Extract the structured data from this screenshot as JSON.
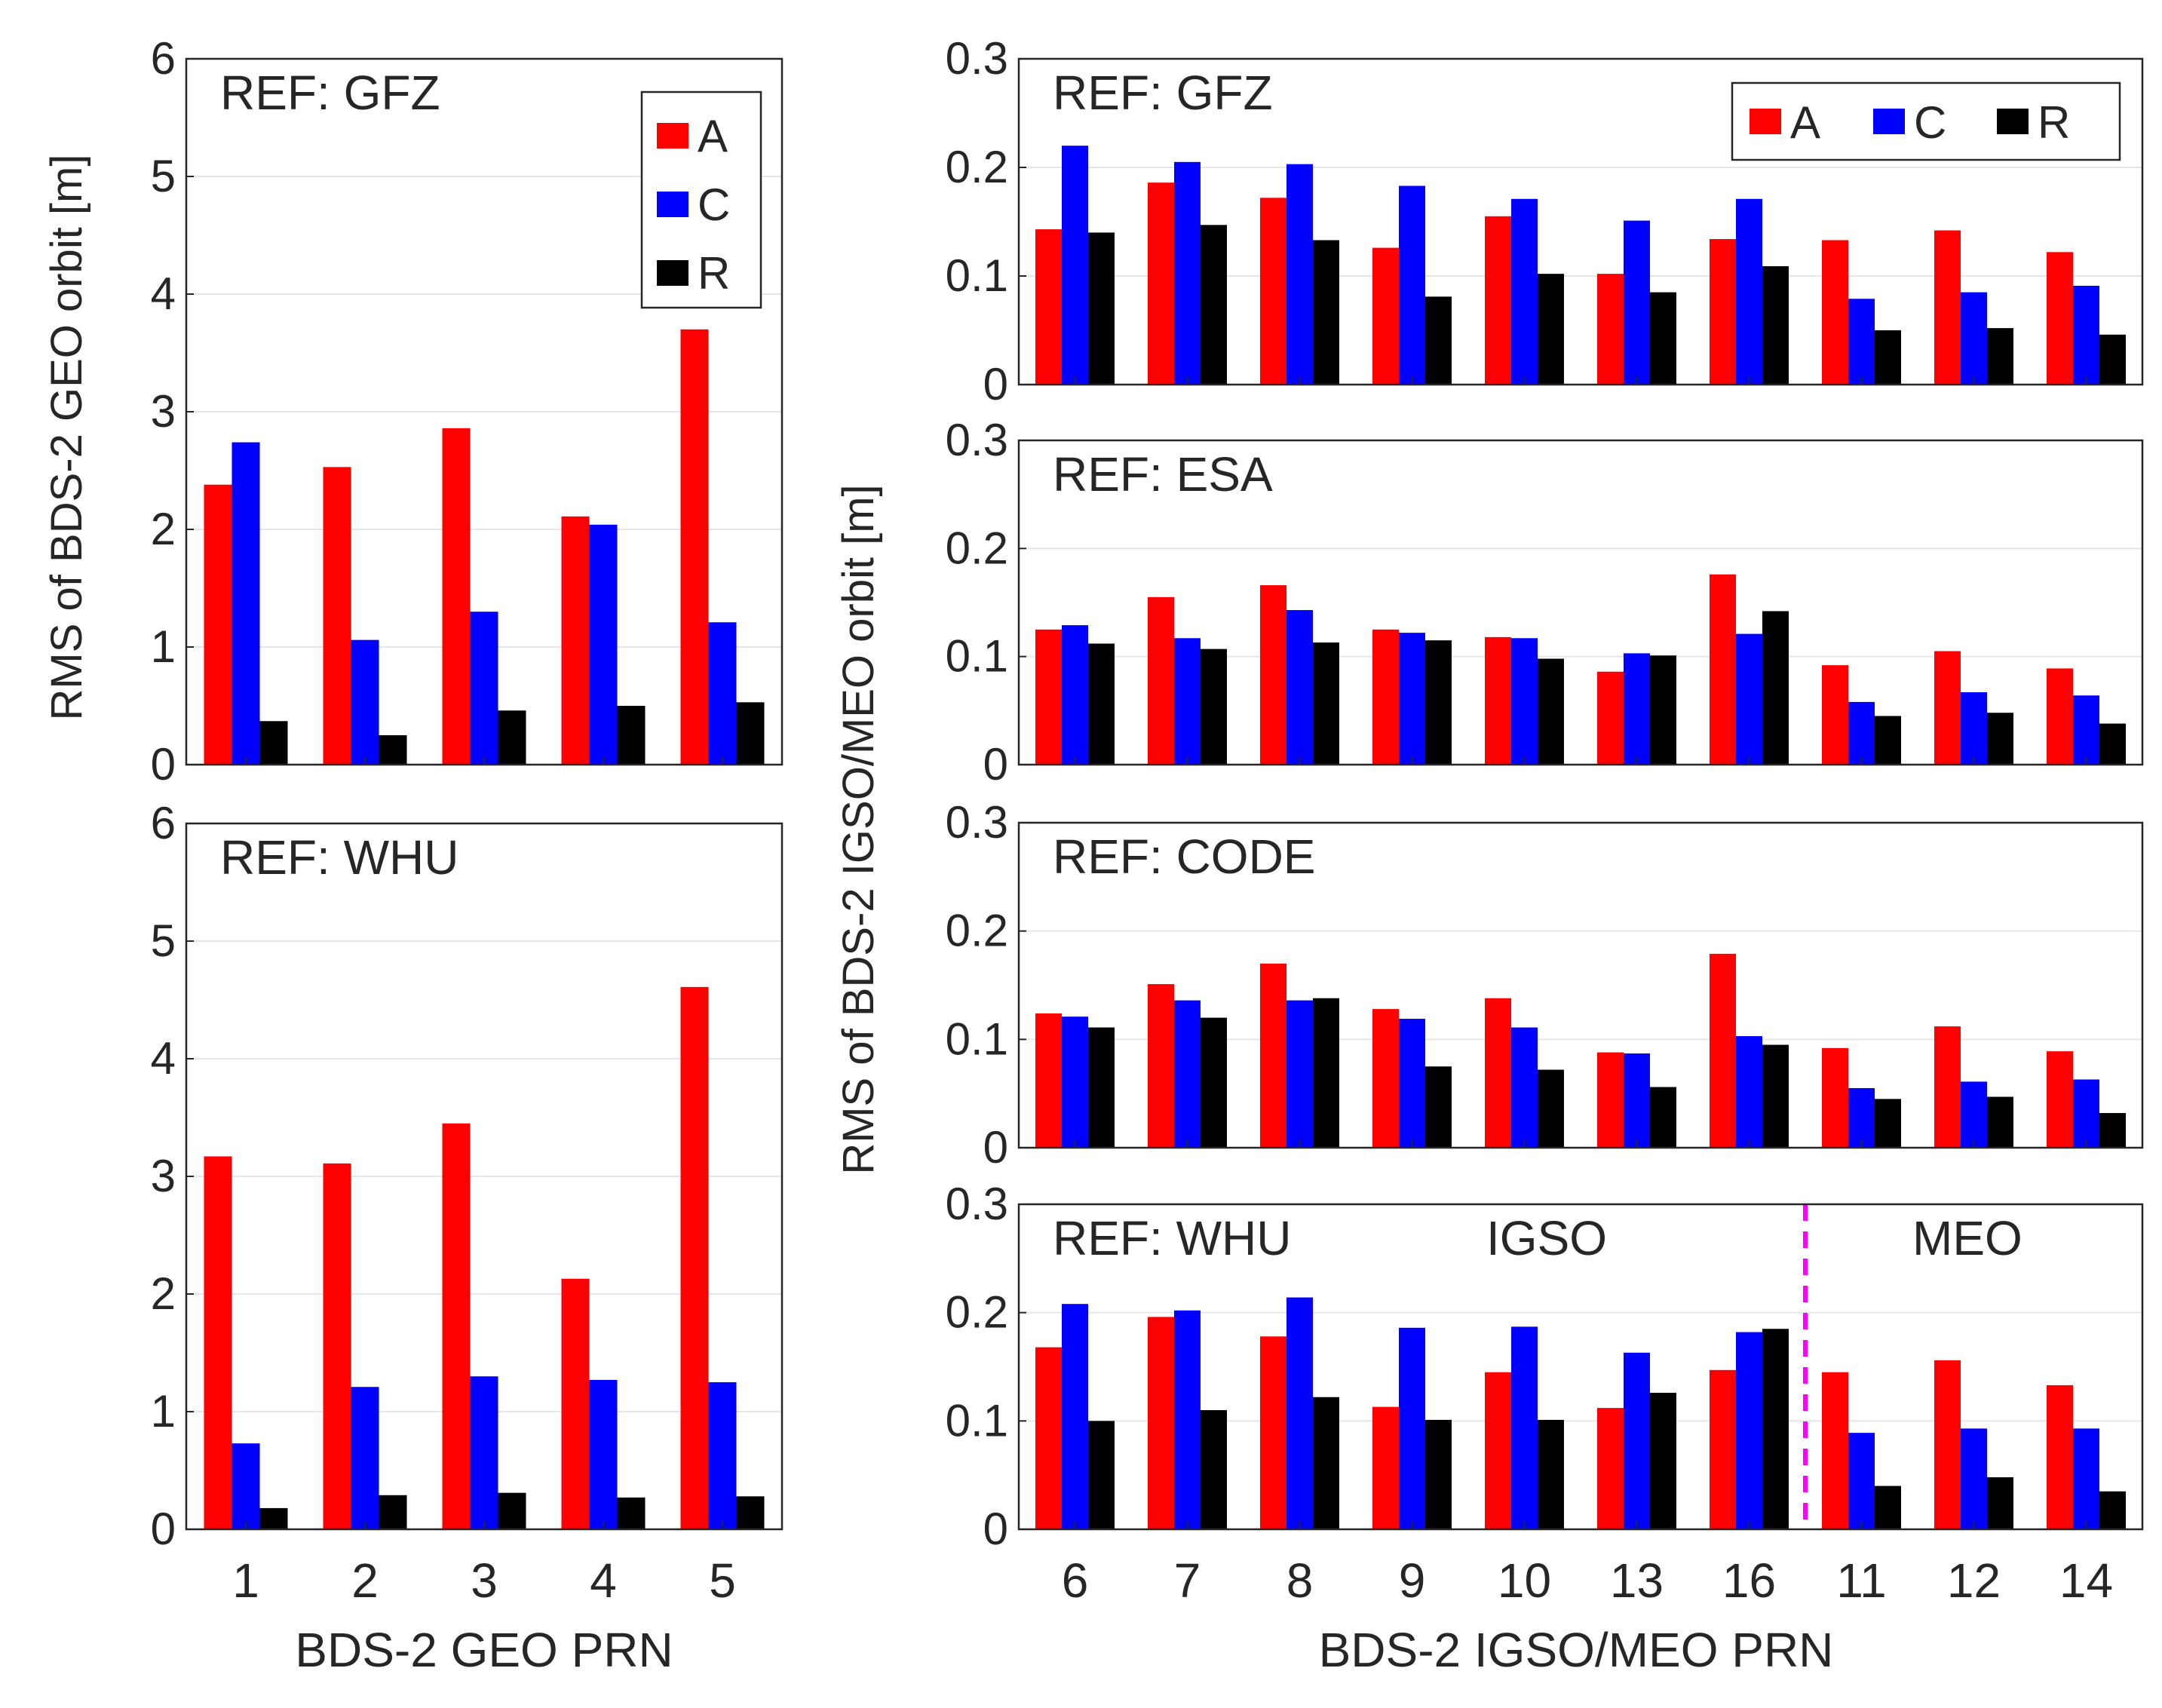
{
  "figure": {
    "left_ylabel": "RMS of BDS-2 GEO orbit [m]",
    "right_ylabel": "RMS of BDS-2 IGSO/MEO orbit [m]",
    "left_xlabel": "BDS-2 GEO PRN",
    "right_xlabel": "BDS-2 IGSO/MEO PRN"
  },
  "legend": {
    "labels": [
      "A",
      "C",
      "R"
    ]
  },
  "colors": {
    "A": "#ff0000",
    "C": "#0000ff",
    "R": "#000000",
    "divider": "#ff00ff",
    "grid": "#e6e6e6"
  },
  "chart_data": [
    {
      "type": "bar",
      "title": "REF: GFZ",
      "categories": [
        "1",
        "2",
        "3",
        "4",
        "5"
      ],
      "series": [
        {
          "name": "A",
          "values": [
            2.38,
            2.53,
            2.86,
            2.11,
            3.7
          ]
        },
        {
          "name": "C",
          "values": [
            2.74,
            1.06,
            1.3,
            2.04,
            1.21
          ]
        },
        {
          "name": "R",
          "values": [
            0.37,
            0.25,
            0.46,
            0.5,
            0.53
          ]
        }
      ],
      "ylim": [
        0,
        6
      ],
      "yticks": [
        "0",
        "1",
        "2",
        "3",
        "4",
        "5",
        "6"
      ],
      "xlabel": "BDS-2 GEO PRN",
      "ylabel": "RMS of BDS-2 GEO orbit [m]",
      "grid": true,
      "legend": "top-right, vertical"
    },
    {
      "type": "bar",
      "title": "REF: WHU",
      "categories": [
        "1",
        "2",
        "3",
        "4",
        "5"
      ],
      "series": [
        {
          "name": "A",
          "values": [
            3.17,
            3.11,
            3.45,
            2.13,
            4.61
          ]
        },
        {
          "name": "C",
          "values": [
            0.73,
            1.21,
            1.3,
            1.27,
            1.25
          ]
        },
        {
          "name": "R",
          "values": [
            0.18,
            0.29,
            0.31,
            0.27,
            0.28
          ]
        }
      ],
      "ylim": [
        0,
        6
      ],
      "yticks": [
        "0",
        "1",
        "2",
        "3",
        "4",
        "5",
        "6"
      ],
      "xlabel": "BDS-2 GEO PRN",
      "ylabel": "RMS of BDS-2 GEO orbit [m]",
      "grid": true
    },
    {
      "type": "bar",
      "title": "REF: GFZ",
      "categories": [
        "6",
        "7",
        "8",
        "9",
        "10",
        "13",
        "16",
        "11",
        "12",
        "14"
      ],
      "series": [
        {
          "name": "A",
          "values": [
            0.143,
            0.186,
            0.172,
            0.126,
            0.155,
            0.102,
            0.134,
            0.133,
            0.142,
            0.122
          ]
        },
        {
          "name": "C",
          "values": [
            0.22,
            0.205,
            0.203,
            0.183,
            0.171,
            0.151,
            0.171,
            0.079,
            0.085,
            0.091
          ]
        },
        {
          "name": "R",
          "values": [
            0.14,
            0.147,
            0.133,
            0.081,
            0.102,
            0.085,
            0.109,
            0.05,
            0.052,
            0.046
          ]
        }
      ],
      "ylim": [
        0,
        0.3
      ],
      "yticks": [
        "0",
        "0.1",
        "0.2",
        "0.3"
      ],
      "ylabel": "RMS of BDS-2 IGSO/MEO orbit [m]",
      "grid": true,
      "legend": "top-right, horizontal"
    },
    {
      "type": "bar",
      "title": "REF: ESA",
      "categories": [
        "6",
        "7",
        "8",
        "9",
        "10",
        "13",
        "16",
        "11",
        "12",
        "14"
      ],
      "series": [
        {
          "name": "A",
          "values": [
            0.125,
            0.155,
            0.166,
            0.125,
            0.118,
            0.086,
            0.176,
            0.092,
            0.105,
            0.089
          ]
        },
        {
          "name": "C",
          "values": [
            0.129,
            0.117,
            0.143,
            0.122,
            0.117,
            0.103,
            0.121,
            0.058,
            0.067,
            0.064
          ]
        },
        {
          "name": "R",
          "values": [
            0.112,
            0.107,
            0.113,
            0.115,
            0.098,
            0.101,
            0.142,
            0.045,
            0.048,
            0.038
          ]
        }
      ],
      "ylim": [
        0,
        0.3
      ],
      "yticks": [
        "0",
        "0.1",
        "0.2",
        "0.3"
      ],
      "ylabel": "RMS of BDS-2 IGSO/MEO orbit [m]",
      "grid": true
    },
    {
      "type": "bar",
      "title": "REF: CODE",
      "categories": [
        "6",
        "7",
        "8",
        "9",
        "10",
        "13",
        "16",
        "11",
        "12",
        "14"
      ],
      "series": [
        {
          "name": "A",
          "values": [
            0.124,
            0.151,
            0.17,
            0.128,
            0.138,
            0.088,
            0.179,
            0.092,
            0.112,
            0.089
          ]
        },
        {
          "name": "C",
          "values": [
            0.121,
            0.136,
            0.136,
            0.119,
            0.111,
            0.087,
            0.103,
            0.055,
            0.061,
            0.063
          ]
        },
        {
          "name": "R",
          "values": [
            0.111,
            0.12,
            0.138,
            0.075,
            0.072,
            0.056,
            0.095,
            0.045,
            0.047,
            0.032
          ]
        }
      ],
      "ylim": [
        0,
        0.3
      ],
      "yticks": [
        "0",
        "0.1",
        "0.2",
        "0.3"
      ],
      "ylabel": "RMS of BDS-2 IGSO/MEO orbit [m]",
      "grid": true
    },
    {
      "type": "bar",
      "title": "REF: WHU",
      "categories": [
        "6",
        "7",
        "8",
        "9",
        "10",
        "13",
        "16",
        "11",
        "12",
        "14"
      ],
      "series": [
        {
          "name": "A",
          "values": [
            0.168,
            0.196,
            0.178,
            0.113,
            0.145,
            0.112,
            0.147,
            0.145,
            0.156,
            0.133
          ]
        },
        {
          "name": "C",
          "values": [
            0.208,
            0.202,
            0.214,
            0.186,
            0.187,
            0.163,
            0.182,
            0.089,
            0.093,
            0.093
          ]
        },
        {
          "name": "R",
          "values": [
            0.1,
            0.11,
            0.122,
            0.101,
            0.101,
            0.126,
            0.185,
            0.04,
            0.048,
            0.035
          ]
        }
      ],
      "ylim": [
        0,
        0.3
      ],
      "yticks": [
        "0",
        "0.1",
        "0.2",
        "0.3"
      ],
      "xlabel": "BDS-2 IGSO/MEO PRN",
      "ylabel": "RMS of BDS-2 IGSO/MEO orbit [m]",
      "grid": true,
      "annotations": [
        "IGSO",
        "MEO"
      ],
      "divider_between_categories": [
        "16",
        "11"
      ]
    }
  ]
}
